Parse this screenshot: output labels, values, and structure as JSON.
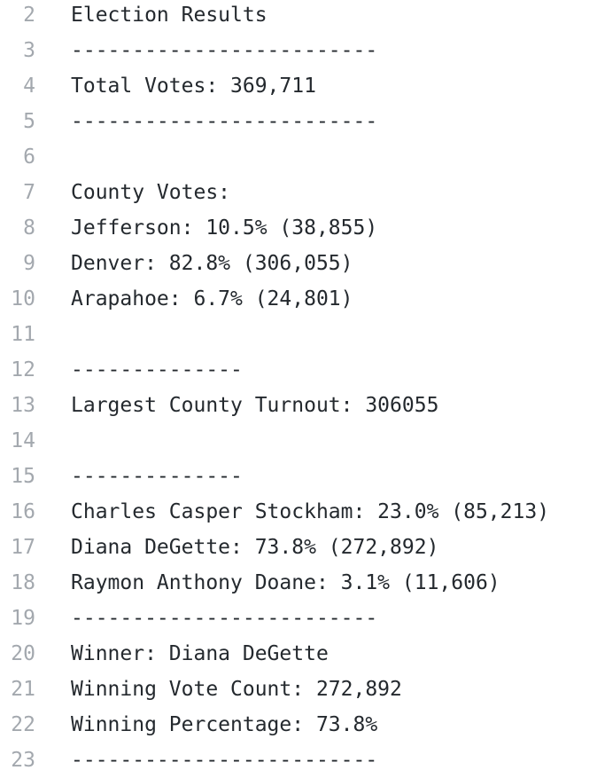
{
  "file_view": {
    "lines": [
      {
        "number": "2",
        "text": "Election Results"
      },
      {
        "number": "3",
        "text": "-------------------------"
      },
      {
        "number": "4",
        "text": "Total Votes: 369,711"
      },
      {
        "number": "5",
        "text": "-------------------------"
      },
      {
        "number": "6",
        "text": ""
      },
      {
        "number": "7",
        "text": "County Votes:"
      },
      {
        "number": "8",
        "text": "Jefferson: 10.5% (38,855)"
      },
      {
        "number": "9",
        "text": "Denver: 82.8% (306,055)"
      },
      {
        "number": "10",
        "text": "Arapahoe: 6.7% (24,801)"
      },
      {
        "number": "11",
        "text": ""
      },
      {
        "number": "12",
        "text": "--------------"
      },
      {
        "number": "13",
        "text": "Largest County Turnout: 306055"
      },
      {
        "number": "14",
        "text": ""
      },
      {
        "number": "15",
        "text": "--------------"
      },
      {
        "number": "16",
        "text": "Charles Casper Stockham: 23.0% (85,213)"
      },
      {
        "number": "17",
        "text": "Diana DeGette: 73.8% (272,892)"
      },
      {
        "number": "18",
        "text": "Raymon Anthony Doane: 3.1% (11,606)"
      },
      {
        "number": "19",
        "text": "-------------------------"
      },
      {
        "number": "20",
        "text": "Winner: Diana DeGette"
      },
      {
        "number": "21",
        "text": "Winning Vote Count: 272,892"
      },
      {
        "number": "22",
        "text": "Winning Percentage: 73.8%"
      },
      {
        "number": "23",
        "text": "-------------------------"
      }
    ]
  },
  "colors": {
    "background": "#ffffff",
    "text": "#24292e",
    "line_number": "#a3a8ae"
  }
}
